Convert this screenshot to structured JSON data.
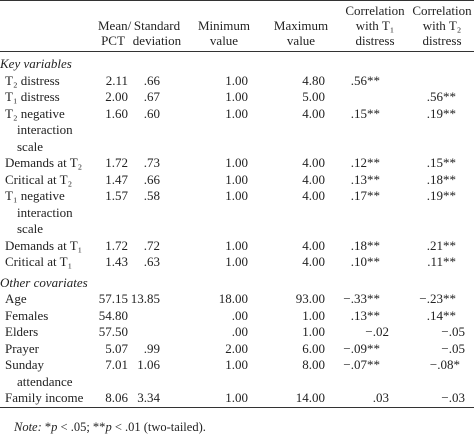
{
  "table": {
    "header": [
      "Mean/ PCT",
      "Standard deviation",
      "Minimum value",
      "Maximum value",
      "Correlation with T₁ distress",
      "Correlation with T₂ distress"
    ],
    "sections": [
      {
        "title": "Key variables",
        "rows": [
          {
            "label": "T₂ distress",
            "cells": [
              "2.11",
              ".66",
              "1.00",
              "4.80",
              ".56**",
              null
            ]
          },
          {
            "label": "T₁ distress",
            "cells": [
              "2.00",
              ".67",
              "1.00",
              "5.00",
              null,
              ".56**"
            ]
          },
          {
            "label": "T₂ negative interaction scale",
            "cells": [
              "1.60",
              ".60",
              "1.00",
              "4.00",
              ".15**",
              ".19**"
            ]
          },
          {
            "label": "Demands at T₂",
            "cells": [
              "1.72",
              ".73",
              "1.00",
              "4.00",
              ".12**",
              ".15**"
            ]
          },
          {
            "label": "Critical at T₂",
            "cells": [
              "1.47",
              ".66",
              "1.00",
              "4.00",
              ".13**",
              ".18**"
            ]
          },
          {
            "label": "T₁ negative interaction scale",
            "cells": [
              "1.57",
              ".58",
              "1.00",
              "4.00",
              ".17**",
              ".19**"
            ]
          },
          {
            "label": "Demands at T₁",
            "cells": [
              "1.72",
              ".72",
              "1.00",
              "4.00",
              ".18**",
              ".21**"
            ]
          },
          {
            "label": "Critical at T₁",
            "cells": [
              "1.43",
              ".63",
              "1.00",
              "4.00",
              ".10**",
              ".11**"
            ]
          }
        ]
      },
      {
        "title": "Other covariates",
        "rows": [
          {
            "label": "Age",
            "cells": [
              "57.15",
              "13.85",
              "18.00",
              "93.00",
              "−.33**",
              "−.23**"
            ]
          },
          {
            "label": "Females",
            "cells": [
              "54.80",
              null,
              ".00",
              "1.00",
              ".13**",
              ".14**"
            ]
          },
          {
            "label": "Elders",
            "cells": [
              "57.50",
              null,
              ".00",
              "1.00",
              "−.02",
              "−.05"
            ]
          },
          {
            "label": "Prayer",
            "cells": [
              "5.07",
              ".99",
              "2.00",
              "6.00",
              "−.09**",
              "−.05"
            ]
          },
          {
            "label": "Sunday attendance",
            "cells": [
              "7.01",
              "1.06",
              "1.00",
              "8.00",
              "−.07**",
              "−.08*"
            ]
          },
          {
            "label": "Family income",
            "cells": [
              "8.06",
              "3.34",
              "1.00",
              "14.00",
              ".03",
              "−.03"
            ]
          }
        ]
      }
    ],
    "note": [
      "Note:",
      " *",
      "p",
      " < .05; **",
      "p",
      " < .01 (two-tailed)."
    ]
  }
}
